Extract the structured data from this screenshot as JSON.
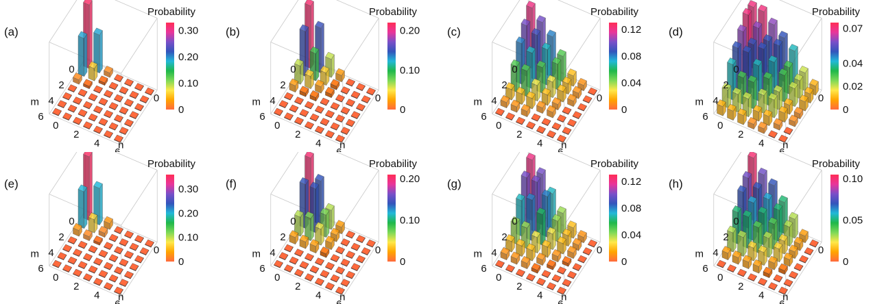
{
  "figure": {
    "panels": [
      {
        "label": "(a)",
        "colorbar_title": "Probability",
        "colorbar_ticks": [
          "0.30",
          "0.20",
          "0.10",
          "0"
        ],
        "colorbar_max": 0.33
      },
      {
        "label": "(b)",
        "colorbar_title": "Probability",
        "colorbar_ticks": [
          "0.20",
          "0.10",
          "0"
        ],
        "colorbar_max": 0.22
      },
      {
        "label": "(c)",
        "colorbar_title": "Probability",
        "colorbar_ticks": [
          "0.12",
          "0.08",
          "0.04",
          "0"
        ],
        "colorbar_max": 0.13
      },
      {
        "label": "(d)",
        "colorbar_title": "Probability",
        "colorbar_ticks": [
          "0.07",
          "0.04",
          "0.02",
          "0"
        ],
        "colorbar_max": 0.075
      },
      {
        "label": "(e)",
        "colorbar_title": "Probability",
        "colorbar_ticks": [
          "0.30",
          "0.20",
          "0.10",
          "0"
        ],
        "colorbar_max": 0.36
      },
      {
        "label": "(f)",
        "colorbar_title": "Probability",
        "colorbar_ticks": [
          "0.20",
          "0.10",
          "0"
        ],
        "colorbar_max": 0.21
      },
      {
        "label": "(g)",
        "colorbar_title": "Probability",
        "colorbar_ticks": [
          "0.12",
          "0.08",
          "0.04",
          "0"
        ],
        "colorbar_max": 0.13
      },
      {
        "label": "(h)",
        "colorbar_title": "Probability",
        "colorbar_ticks": [
          "0.10",
          "0.05",
          "0"
        ],
        "colorbar_max": 0.105
      }
    ],
    "axis": {
      "m_label": "m",
      "n_label": "n",
      "m_ticks": [
        "0",
        "2",
        "4",
        "6"
      ],
      "n_ticks": [
        "0",
        "2",
        "4",
        "6"
      ],
      "z_tick": "0"
    },
    "colormap": [
      "#ff6a3d",
      "#ffa500",
      "#ffe84a",
      "#7ed957",
      "#1fb84a",
      "#22b8d8",
      "#3355bb",
      "#7a4fc8",
      "#e9359a",
      "#ff2d55"
    ]
  },
  "chart_data": [
    {
      "type": "bar3d",
      "label": "(a)",
      "xlabel": "m",
      "ylabel": "n",
      "zlabel": "Probability",
      "zlim": [
        0,
        0.33
      ],
      "x": [
        0,
        1,
        2,
        3,
        4,
        5,
        6
      ],
      "y": [
        0,
        1,
        2,
        3,
        4,
        5,
        6
      ],
      "values": [
        [
          0.32,
          0.19,
          0.02,
          0,
          0,
          0,
          0
        ],
        [
          0.19,
          0.06,
          0.01,
          0,
          0,
          0,
          0
        ],
        [
          0.02,
          0.01,
          0,
          0,
          0,
          0,
          0
        ],
        [
          0,
          0,
          0,
          0,
          0,
          0,
          0
        ],
        [
          0,
          0,
          0,
          0,
          0,
          0,
          0
        ],
        [
          0,
          0,
          0,
          0,
          0,
          0,
          0
        ],
        [
          0,
          0,
          0,
          0,
          0,
          0,
          0
        ]
      ]
    },
    {
      "type": "bar3d",
      "label": "(b)",
      "xlabel": "m",
      "ylabel": "n",
      "zlabel": "Probability",
      "zlim": [
        0,
        0.22
      ],
      "x": [
        0,
        1,
        2,
        3,
        4,
        5,
        6
      ],
      "y": [
        0,
        1,
        2,
        3,
        4,
        5,
        6
      ],
      "values": [
        [
          0.21,
          0.15,
          0.06,
          0.02,
          0,
          0,
          0
        ],
        [
          0.15,
          0.09,
          0.04,
          0.01,
          0,
          0,
          0
        ],
        [
          0.06,
          0.04,
          0.02,
          0.01,
          0,
          0,
          0
        ],
        [
          0.02,
          0.01,
          0.01,
          0,
          0,
          0,
          0
        ],
        [
          0,
          0,
          0,
          0,
          0,
          0,
          0
        ],
        [
          0,
          0,
          0,
          0,
          0,
          0,
          0
        ],
        [
          0,
          0,
          0,
          0,
          0,
          0,
          0
        ]
      ]
    },
    {
      "type": "bar3d",
      "label": "(c)",
      "xlabel": "m",
      "ylabel": "n",
      "zlabel": "Probability",
      "zlim": [
        0,
        0.13
      ],
      "x": [
        0,
        1,
        2,
        3,
        4,
        5,
        6
      ],
      "y": [
        0,
        1,
        2,
        3,
        4,
        5,
        6
      ],
      "values": [
        [
          0.12,
          0.1,
          0.08,
          0.05,
          0.02,
          0.01,
          0
        ],
        [
          0.1,
          0.09,
          0.07,
          0.05,
          0.02,
          0.01,
          0
        ],
        [
          0.08,
          0.07,
          0.05,
          0.03,
          0.02,
          0.01,
          0
        ],
        [
          0.05,
          0.05,
          0.03,
          0.02,
          0.01,
          0,
          0
        ],
        [
          0.02,
          0.02,
          0.02,
          0.01,
          0.01,
          0,
          0
        ],
        [
          0.01,
          0.01,
          0.01,
          0,
          0,
          0,
          0
        ],
        [
          0,
          0,
          0,
          0,
          0,
          0,
          0
        ]
      ]
    },
    {
      "type": "bar3d",
      "label": "(d)",
      "xlabel": "m",
      "ylabel": "n",
      "zlabel": "Probability",
      "zlim": [
        0,
        0.075
      ],
      "x": [
        0,
        1,
        2,
        3,
        4,
        5,
        6
      ],
      "y": [
        0,
        1,
        2,
        3,
        4,
        5,
        6
      ],
      "values": [
        [
          0.07,
          0.07,
          0.06,
          0.05,
          0.04,
          0.02,
          0.01
        ],
        [
          0.07,
          0.06,
          0.05,
          0.05,
          0.03,
          0.02,
          0.01
        ],
        [
          0.06,
          0.05,
          0.05,
          0.04,
          0.03,
          0.02,
          0.01
        ],
        [
          0.05,
          0.05,
          0.04,
          0.03,
          0.02,
          0.01,
          0.005
        ],
        [
          0.04,
          0.03,
          0.03,
          0.02,
          0.02,
          0.01,
          0.005
        ],
        [
          0.02,
          0.02,
          0.02,
          0.01,
          0.01,
          0.005,
          0
        ],
        [
          0.01,
          0.01,
          0.01,
          0.005,
          0.005,
          0,
          0
        ]
      ]
    },
    {
      "type": "bar3d",
      "label": "(e)",
      "xlabel": "m",
      "ylabel": "n",
      "zlabel": "Probability",
      "zlim": [
        0,
        0.36
      ],
      "x": [
        0,
        1,
        2,
        3,
        4,
        5,
        6
      ],
      "y": [
        0,
        1,
        2,
        3,
        4,
        5,
        6
      ],
      "values": [
        [
          0.35,
          0.2,
          0.03,
          0,
          0,
          0,
          0
        ],
        [
          0.2,
          0.07,
          0.02,
          0,
          0,
          0,
          0
        ],
        [
          0.03,
          0.02,
          0.01,
          0,
          0,
          0,
          0
        ],
        [
          0,
          0,
          0,
          0,
          0,
          0,
          0
        ],
        [
          0,
          0,
          0,
          0,
          0,
          0,
          0
        ],
        [
          0,
          0,
          0,
          0,
          0,
          0,
          0
        ],
        [
          0,
          0,
          0,
          0,
          0,
          0,
          0
        ]
      ]
    },
    {
      "type": "bar3d",
      "label": "(f)",
      "xlabel": "m",
      "ylabel": "n",
      "zlabel": "Probability",
      "zlim": [
        0,
        0.21
      ],
      "x": [
        0,
        1,
        2,
        3,
        4,
        5,
        6
      ],
      "y": [
        0,
        1,
        2,
        3,
        4,
        5,
        6
      ],
      "values": [
        [
          0.2,
          0.14,
          0.06,
          0.02,
          0,
          0,
          0
        ],
        [
          0.14,
          0.14,
          0.07,
          0.02,
          0,
          0,
          0
        ],
        [
          0.06,
          0.07,
          0.05,
          0.02,
          0,
          0,
          0
        ],
        [
          0.02,
          0.02,
          0.02,
          0.01,
          0,
          0,
          0
        ],
        [
          0,
          0,
          0,
          0,
          0,
          0,
          0
        ],
        [
          0,
          0,
          0,
          0,
          0,
          0,
          0
        ],
        [
          0,
          0,
          0,
          0,
          0,
          0,
          0
        ]
      ]
    },
    {
      "type": "bar3d",
      "label": "(g)",
      "xlabel": "m",
      "ylabel": "n",
      "zlabel": "Probability",
      "zlim": [
        0,
        0.13
      ],
      "x": [
        0,
        1,
        2,
        3,
        4,
        5,
        6
      ],
      "y": [
        0,
        1,
        2,
        3,
        4,
        5,
        6
      ],
      "values": [
        [
          0.12,
          0.1,
          0.07,
          0.04,
          0.02,
          0.01,
          0
        ],
        [
          0.1,
          0.1,
          0.08,
          0.04,
          0.02,
          0.01,
          0
        ],
        [
          0.07,
          0.08,
          0.06,
          0.03,
          0.02,
          0.01,
          0
        ],
        [
          0.04,
          0.04,
          0.03,
          0.02,
          0.01,
          0.005,
          0
        ],
        [
          0.02,
          0.02,
          0.02,
          0.01,
          0.005,
          0,
          0
        ],
        [
          0.01,
          0.01,
          0.01,
          0.005,
          0,
          0,
          0
        ],
        [
          0,
          0,
          0,
          0,
          0,
          0,
          0
        ]
      ]
    },
    {
      "type": "bar3d",
      "label": "(h)",
      "xlabel": "m",
      "ylabel": "n",
      "zlabel": "Probability",
      "zlim": [
        0,
        0.105
      ],
      "x": [
        0,
        1,
        2,
        3,
        4,
        5,
        6
      ],
      "y": [
        0,
        1,
        2,
        3,
        4,
        5,
        6
      ],
      "values": [
        [
          0.1,
          0.08,
          0.07,
          0.05,
          0.03,
          0.01,
          0
        ],
        [
          0.08,
          0.07,
          0.06,
          0.05,
          0.03,
          0.01,
          0
        ],
        [
          0.07,
          0.06,
          0.05,
          0.04,
          0.02,
          0.01,
          0
        ],
        [
          0.05,
          0.05,
          0.04,
          0.03,
          0.02,
          0.01,
          0
        ],
        [
          0.03,
          0.03,
          0.02,
          0.02,
          0.01,
          0.005,
          0
        ],
        [
          0.01,
          0.01,
          0.01,
          0.01,
          0.005,
          0,
          0
        ],
        [
          0,
          0,
          0,
          0,
          0,
          0,
          0
        ]
      ]
    }
  ]
}
